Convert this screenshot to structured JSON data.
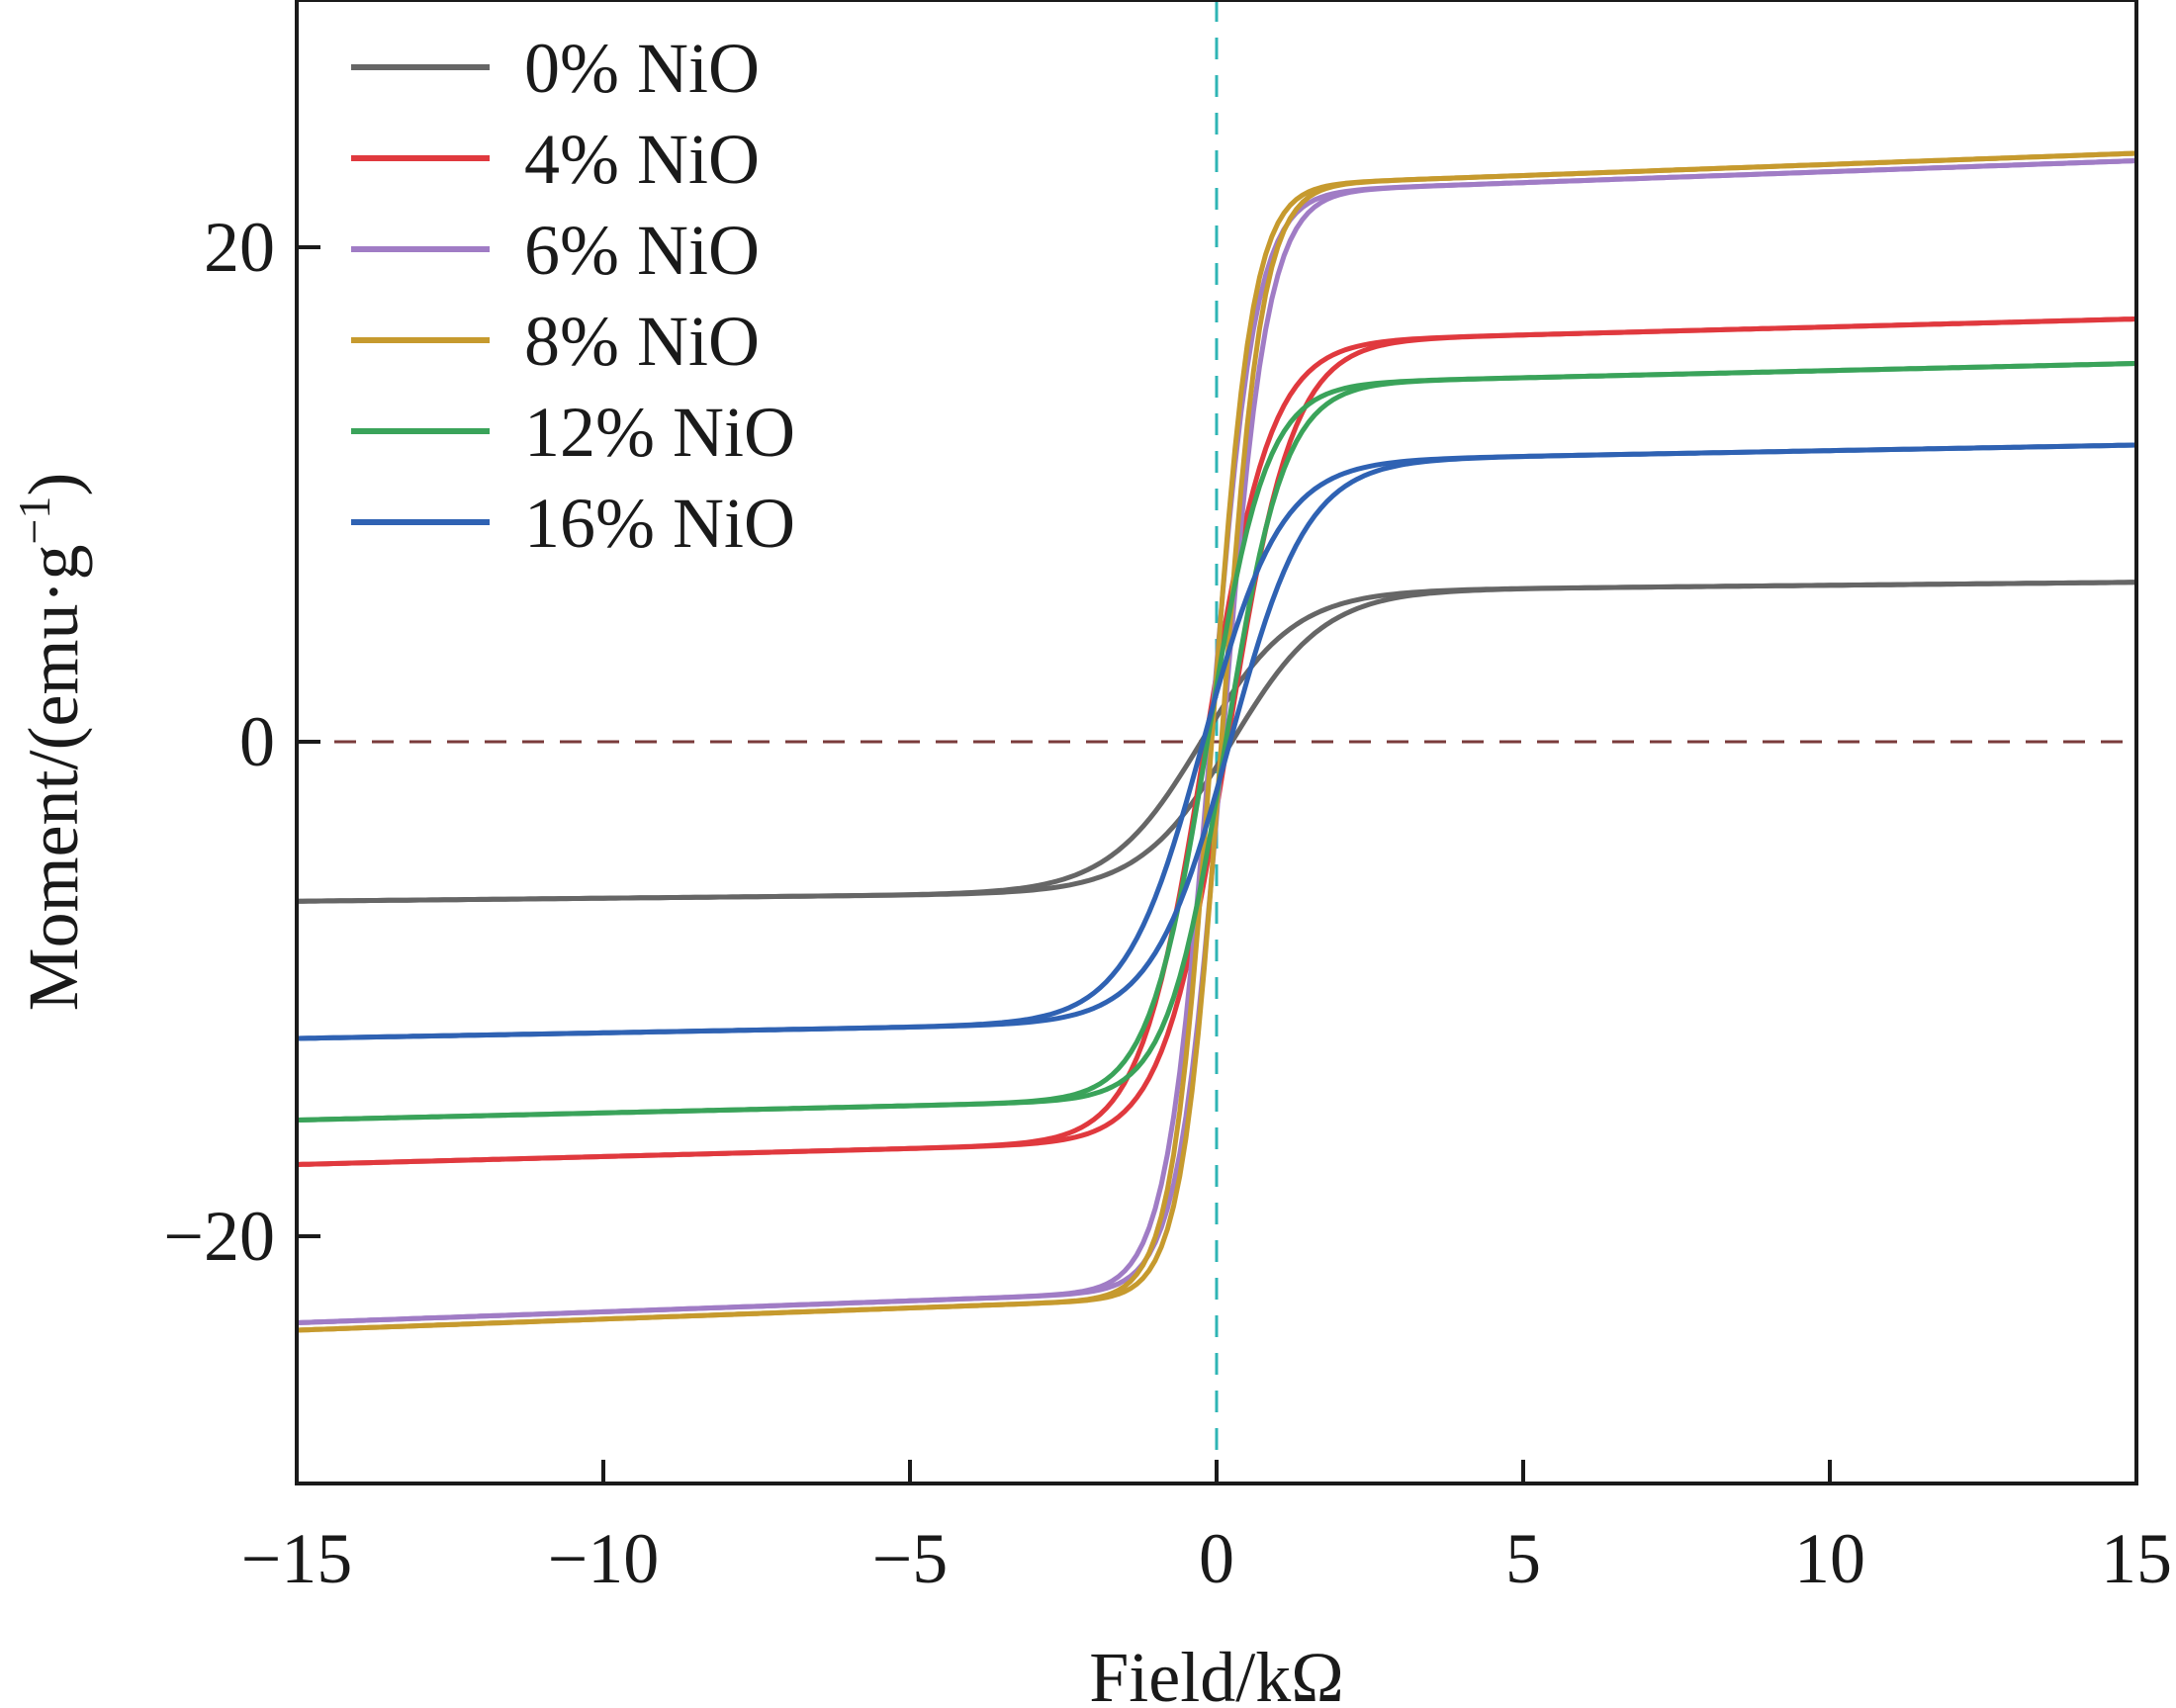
{
  "chart_data": {
    "type": "line",
    "xlabel": "Field/kΩ",
    "ylabel_main": "Moment/(emu·g",
    "ylabel_sup": "−1",
    "ylabel_close": ")",
    "xlim": [
      -15,
      15
    ],
    "ylim": [
      -30,
      30
    ],
    "x_ticks": [
      -15,
      -10,
      -5,
      0,
      5,
      10,
      15
    ],
    "x_tick_labels": [
      "−15",
      "−10",
      "−5",
      "0",
      "5",
      "10",
      "15"
    ],
    "y_ticks": [
      -20,
      0,
      20
    ],
    "y_tick_labels": [
      "−20",
      "0",
      "20"
    ],
    "grid": false,
    "legend_position": "top-left",
    "reference_lines": {
      "horizontal_y": 0,
      "vertical_x": 0
    },
    "series": [
      {
        "name": "0% NiO",
        "color": "#666666",
        "Ms": 6.45,
        "Hk": 1.5,
        "Hc": 0.25,
        "lead": [
          -15,
          -6.45
        ],
        "trail": [
          15,
          6.45
        ]
      },
      {
        "name": "4% NiO",
        "color": "#e0393e",
        "Ms": 17.1,
        "Hk": 1.05,
        "Hc": 0.18,
        "lead": [
          -15,
          -17.1
        ],
        "trail": [
          15,
          17.1
        ]
      },
      {
        "name": "6% NiO",
        "color": "#a07cc5",
        "Ms": 23.5,
        "Hk": 0.72,
        "Hc": 0.1,
        "lead": [
          -15,
          -23.5
        ],
        "trail": [
          15,
          23.5
        ]
      },
      {
        "name": "8% NiO",
        "color": "#c69a2e",
        "Ms": 23.8,
        "Hk": 0.65,
        "Hc": 0.08,
        "lead": [
          -15,
          -23.8
        ],
        "trail": [
          15,
          23.8
        ]
      },
      {
        "name": "12% NiO",
        "color": "#3aa35a",
        "Ms": 15.3,
        "Hk": 0.95,
        "Hc": 0.15,
        "lead": [
          -15,
          -15.3
        ],
        "trail": [
          15,
          15.3
        ]
      },
      {
        "name": "16% NiO",
        "color": "#2f62b3",
        "Ms": 12.0,
        "Hk": 1.25,
        "Hc": 0.22,
        "lead": [
          -15,
          -12.0
        ],
        "trail": [
          15,
          12.0
        ]
      }
    ],
    "colors": {
      "axis": "#1a1a1a",
      "zero_line": "#7a3b3b",
      "vertical_line": "#2fb5b5"
    }
  }
}
